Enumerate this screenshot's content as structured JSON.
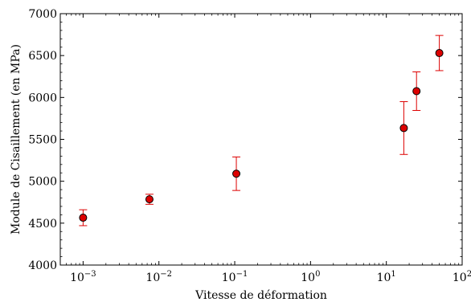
{
  "chart_data": {
    "type": "scatter",
    "title": "",
    "xlabel": "Vitesse de déformation",
    "ylabel": "Module de Cisaillement (en MPa)",
    "xscale": "log",
    "xlim": [
      0.0005,
      100
    ],
    "ylim": [
      4000,
      7000
    ],
    "x_ticks": [
      {
        "value": 0.001,
        "base": "10",
        "exp": "−3"
      },
      {
        "value": 0.01,
        "base": "10",
        "exp": "−2"
      },
      {
        "value": 0.1,
        "base": "10",
        "exp": "−1"
      },
      {
        "value": 1,
        "base": "10",
        "exp": "0"
      },
      {
        "value": 10,
        "base": "10",
        "exp": "1"
      },
      {
        "value": 100,
        "base": "10",
        "exp": "2"
      }
    ],
    "y_ticks": [
      4000,
      4500,
      5000,
      5500,
      6000,
      6500,
      7000
    ],
    "grid": false,
    "marker_color": "#dd0000",
    "errorbar_color": "#dd0000",
    "points": [
      {
        "x": 0.001,
        "y": 4565,
        "err": 95
      },
      {
        "x": 0.0075,
        "y": 4785,
        "err": 60
      },
      {
        "x": 0.105,
        "y": 5090,
        "err": 200
      },
      {
        "x": 17,
        "y": 5635,
        "err": 315
      },
      {
        "x": 25,
        "y": 6075,
        "err": 230
      },
      {
        "x": 50,
        "y": 6530,
        "err": 210
      }
    ]
  }
}
